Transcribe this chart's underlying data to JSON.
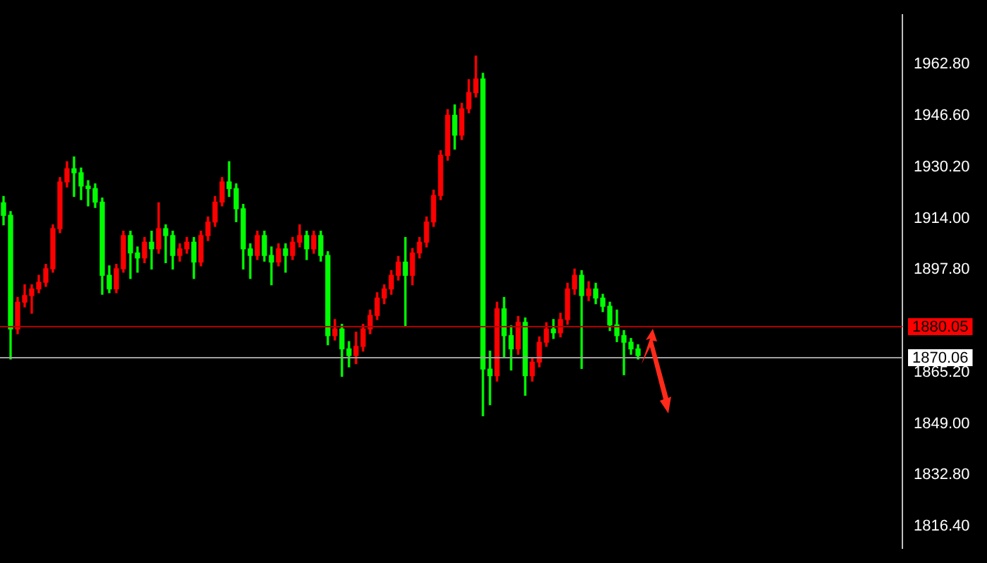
{
  "chart_data": {
    "type": "candlestick",
    "categories": [
      null,
      null,
      null,
      null,
      null,
      null,
      null,
      null,
      null,
      null,
      null,
      null,
      null,
      null,
      null,
      null,
      null,
      null,
      null,
      null,
      null,
      null,
      null,
      null,
      null,
      null,
      null,
      null,
      null,
      null,
      null,
      null,
      null,
      null,
      null,
      null,
      null,
      null,
      null,
      null,
      null,
      null,
      null,
      null,
      null,
      null,
      null,
      null,
      null,
      null,
      null,
      null,
      null,
      null,
      null,
      null,
      null,
      null,
      null,
      null,
      null,
      null,
      null,
      null,
      null,
      null,
      null,
      null,
      null,
      null,
      null,
      null,
      null,
      null,
      null,
      null,
      null,
      null,
      null,
      null,
      null,
      null,
      null,
      null,
      null,
      null,
      null,
      null,
      null,
      null,
      null,
      null,
      null,
      null,
      null,
      null,
      null,
      null,
      null,
      null,
      null,
      null,
      null,
      null,
      null,
      null,
      null,
      null,
      null,
      null,
      null,
      null,
      null,
      null,
      null,
      null,
      null,
      null,
      null,
      null,
      null,
      null,
      null,
      null,
      null,
      null,
      null,
      null
    ],
    "ohlc": [
      [
        1919.0,
        1921.0,
        1912.0,
        1915.0
      ],
      [
        1915.0,
        1916.2,
        1869.5,
        1879.0
      ],
      [
        1879.0,
        1889.0,
        1877.5,
        1887.5
      ],
      [
        1887.5,
        1893.0,
        1886.0,
        1889.6
      ],
      [
        1889.6,
        1893.0,
        1884.0,
        1891.7
      ],
      [
        1891.7,
        1896.0,
        1890.5,
        1893.8
      ],
      [
        1893.8,
        1899.5,
        1892.5,
        1898.1
      ],
      [
        1898.1,
        1912.0,
        1897.0,
        1910.8
      ],
      [
        1910.8,
        1927.0,
        1909.5,
        1925.6
      ],
      [
        1925.6,
        1932.0,
        1924.0,
        1929.8
      ],
      [
        1929.8,
        1933.5,
        1921.0,
        1928.5
      ],
      [
        1928.5,
        1930.0,
        1920.0,
        1924.3
      ],
      [
        1924.3,
        1926.0,
        1918.0,
        1923.5
      ],
      [
        1923.5,
        1925.0,
        1917.5,
        1919.2
      ],
      [
        1919.2,
        1920.5,
        1890.0,
        1896.0
      ],
      [
        1896.0,
        1899.0,
        1890.5,
        1891.7
      ],
      [
        1891.7,
        1899.5,
        1890.5,
        1898.1
      ],
      [
        1898.1,
        1910.0,
        1897.0,
        1908.6
      ],
      [
        1908.6,
        1910.0,
        1895.0,
        1903.1
      ],
      [
        1903.1,
        1905.0,
        1897.0,
        1901.5
      ],
      [
        1901.5,
        1908.0,
        1900.0,
        1906.5
      ],
      [
        1906.5,
        1910.0,
        1898.0,
        1904.4
      ],
      [
        1904.4,
        1919.0,
        1903.0,
        1910.8
      ],
      [
        1910.8,
        1912.0,
        1900.0,
        1908.6
      ],
      [
        1908.6,
        1910.0,
        1898.0,
        1902.3
      ],
      [
        1902.3,
        1906.0,
        1900.5,
        1904.4
      ],
      [
        1904.4,
        1908.0,
        1903.0,
        1906.5
      ],
      [
        1906.5,
        1908.0,
        1895.0,
        1900.2
      ],
      [
        1900.2,
        1910.0,
        1899.0,
        1908.6
      ],
      [
        1908.6,
        1914.5,
        1907.0,
        1912.9
      ],
      [
        1912.9,
        1921.0,
        1911.5,
        1919.2
      ],
      [
        1919.2,
        1927.0,
        1918.0,
        1925.6
      ],
      [
        1925.6,
        1932.0,
        1921.0,
        1923.5
      ],
      [
        1923.5,
        1925.0,
        1913.0,
        1917.1
      ],
      [
        1917.1,
        1918.5,
        1898.0,
        1904.4
      ],
      [
        1904.4,
        1906.0,
        1895.0,
        1902.3
      ],
      [
        1902.3,
        1910.0,
        1901.0,
        1908.6
      ],
      [
        1908.6,
        1910.0,
        1900.5,
        1902.3
      ],
      [
        1902.3,
        1905.0,
        1893.0,
        1900.2
      ],
      [
        1900.2,
        1906.0,
        1899.0,
        1904.4
      ],
      [
        1904.4,
        1906.0,
        1897.0,
        1902.3
      ],
      [
        1902.3,
        1908.0,
        1901.0,
        1906.5
      ],
      [
        1906.5,
        1912.0,
        1905.0,
        1908.6
      ],
      [
        1908.6,
        1910.0,
        1901.0,
        1904.4
      ],
      [
        1904.4,
        1910.0,
        1903.0,
        1908.6
      ],
      [
        1908.6,
        1910.0,
        1900.5,
        1902.3
      ],
      [
        1902.3,
        1903.5,
        1874.0,
        1876.9
      ],
      [
        1876.9,
        1882.0,
        1875.5,
        1879.0
      ],
      [
        1879.0,
        1880.5,
        1864.0,
        1872.7
      ],
      [
        1872.7,
        1875.0,
        1867.0,
        1870.6
      ],
      [
        1870.6,
        1878.0,
        1868.0,
        1873.5
      ],
      [
        1873.5,
        1880.5,
        1872.0,
        1879.0
      ],
      [
        1879.0,
        1885.0,
        1877.5,
        1883.3
      ],
      [
        1883.3,
        1890.5,
        1882.0,
        1888.8
      ],
      [
        1888.8,
        1893.0,
        1887.0,
        1891.7
      ],
      [
        1891.7,
        1897.5,
        1890.0,
        1896.0
      ],
      [
        1896.0,
        1902.0,
        1894.5,
        1900.2
      ],
      [
        1900.2,
        1908.0,
        1880.0,
        1896.0
      ],
      [
        1896.0,
        1904.5,
        1893.0,
        1903.1
      ],
      [
        1903.1,
        1908.0,
        1901.5,
        1906.5
      ],
      [
        1906.5,
        1914.5,
        1905.0,
        1912.9
      ],
      [
        1912.9,
        1923.0,
        1911.5,
        1921.3
      ],
      [
        1921.3,
        1935.5,
        1920.0,
        1934.0
      ],
      [
        1934.0,
        1948.5,
        1932.5,
        1946.7
      ],
      [
        1946.7,
        1950.0,
        1936.0,
        1940.4
      ],
      [
        1940.4,
        1950.5,
        1939.0,
        1948.8
      ],
      [
        1948.8,
        1958.0,
        1947.5,
        1953.9
      ],
      [
        1953.9,
        1965.5,
        1952.5,
        1958.2
      ],
      [
        1958.2,
        1960.0,
        1851.5,
        1866.3
      ],
      [
        1866.3,
        1872.0,
        1855.0,
        1864.2
      ],
      [
        1864.2,
        1887.5,
        1862.5,
        1885.4
      ],
      [
        1885.4,
        1889.0,
        1870.0,
        1876.9
      ],
      [
        1876.9,
        1880.0,
        1866.0,
        1872.7
      ],
      [
        1872.7,
        1883.0,
        1871.0,
        1881.1
      ],
      [
        1881.1,
        1882.5,
        1858.0,
        1864.2
      ],
      [
        1864.2,
        1870.0,
        1862.5,
        1868.5
      ],
      [
        1868.5,
        1876.5,
        1867.0,
        1874.8
      ],
      [
        1874.8,
        1881.0,
        1873.5,
        1879.0
      ],
      [
        1879.0,
        1882.0,
        1876.0,
        1877.8
      ],
      [
        1877.8,
        1884.0,
        1876.5,
        1882.0
      ],
      [
        1882.0,
        1893.5,
        1880.5,
        1891.7
      ],
      [
        1891.7,
        1898.0,
        1890.0,
        1896.0
      ],
      [
        1896.0,
        1897.5,
        1866.5,
        1889.6
      ],
      [
        1889.6,
        1894.0,
        1888.0,
        1891.7
      ],
      [
        1891.7,
        1893.5,
        1887.0,
        1888.8
      ],
      [
        1888.8,
        1890.0,
        1884.5,
        1886.2
      ],
      [
        1886.2,
        1887.5,
        1878.5,
        1880.3
      ],
      [
        1880.3,
        1885.0,
        1875.0,
        1876.9
      ],
      [
        1876.9,
        1878.5,
        1864.5,
        1874.8
      ],
      [
        1874.8,
        1876.0,
        1871.0,
        1872.7
      ],
      [
        1872.7,
        1874.0,
        1869.5,
        1870.6
      ],
      null,
      null,
      null,
      null,
      null,
      null,
      null,
      null,
      null,
      null,
      null,
      null,
      null,
      null,
      null,
      null,
      null,
      null,
      null,
      null,
      null,
      null,
      null,
      null,
      null,
      null,
      null,
      null,
      null,
      null,
      null,
      null,
      null,
      null,
      null,
      null,
      null
    ],
    "colors": [
      "#00ff00",
      "#00ff00",
      "#ff0000",
      "#ff0000",
      "#ff0000",
      "#ff0000",
      "#ff0000",
      "#ff0000",
      "#ff0000",
      "#ff0000",
      "#00ff00",
      "#00ff00",
      "#00ff00",
      "#00ff00",
      "#00ff00",
      "#00ff00",
      "#ff0000",
      "#ff0000",
      "#00ff00",
      "#00ff00",
      "#ff0000",
      "#00ff00",
      "#ff0000",
      "#00ff00",
      "#00ff00",
      "#ff0000",
      "#ff0000",
      "#00ff00",
      "#ff0000",
      "#ff0000",
      "#ff0000",
      "#ff0000",
      "#00ff00",
      "#00ff00",
      "#00ff00",
      "#00ff00",
      "#ff0000",
      "#00ff00",
      "#00ff00",
      "#ff0000",
      "#00ff00",
      "#ff0000",
      "#ff0000",
      "#00ff00",
      "#ff0000",
      "#00ff00",
      "#00ff00",
      "#ff0000",
      "#00ff00",
      "#00ff00",
      "#ff0000",
      "#ff0000",
      "#ff0000",
      "#ff0000",
      "#ff0000",
      "#ff0000",
      "#ff0000",
      "#00ff00",
      "#ff0000",
      "#ff0000",
      "#ff0000",
      "#ff0000",
      "#ff0000",
      "#ff0000",
      "#00ff00",
      "#ff0000",
      "#ff0000",
      "#ff0000",
      "#00ff00",
      "#00ff00",
      "#ff0000",
      "#00ff00",
      "#00ff00",
      "#ff0000",
      "#00ff00",
      "#ff0000",
      "#ff0000",
      "#ff0000",
      "#00ff00",
      "#ff0000",
      "#ff0000",
      "#ff0000",
      "#00ff00",
      "#ff0000",
      "#00ff00",
      "#00ff00",
      "#00ff00",
      "#00ff00",
      "#00ff00",
      "#00ff00",
      "#00ff00",
      null,
      null,
      null,
      null,
      null,
      null,
      null,
      null,
      null,
      null,
      null,
      null,
      null,
      null,
      null,
      null,
      null,
      null,
      null,
      null,
      null,
      null,
      null,
      null,
      null,
      null,
      null,
      null,
      null,
      null,
      null,
      null,
      null,
      null,
      null,
      null,
      null
    ],
    "ylim": [
      1809.6,
      1978.5
    ],
    "yticks": [
      {
        "value": 1962.8,
        "label": "1962.80"
      },
      {
        "value": 1946.6,
        "label": "1946.60"
      },
      {
        "value": 1930.2,
        "label": "1930.20"
      },
      {
        "value": 1914.0,
        "label": "1914.00"
      },
      {
        "value": 1897.8,
        "label": "1897.80"
      },
      {
        "value": 1865.2,
        "label": "1865.20"
      },
      {
        "value": 1849.0,
        "label": "1849.00"
      },
      {
        "value": 1832.8,
        "label": "1832.80"
      },
      {
        "value": 1816.4,
        "label": "1816.40"
      }
    ],
    "ref_lines": [
      {
        "axis": "y",
        "value": 1880.05,
        "label": "1880.05",
        "color": "#b00000"
      },
      {
        "axis": "y",
        "value": 1870.06,
        "label": "1870.06",
        "color": "#a0a0a0"
      }
    ],
    "tick_labels": "y",
    "grid": false,
    "legend": false
  }
}
